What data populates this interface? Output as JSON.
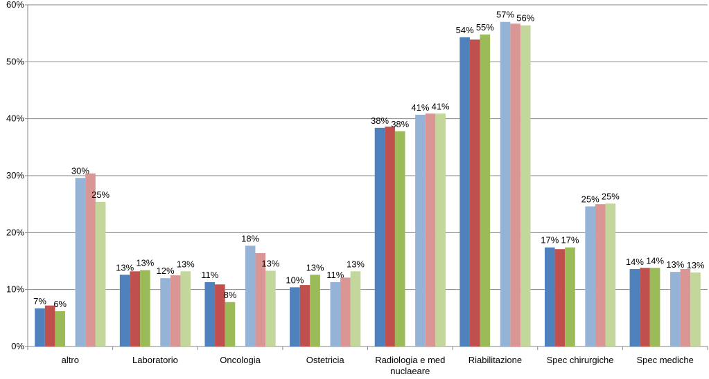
{
  "chart_data": {
    "type": "bar",
    "categories": [
      "altro",
      "Laboratorio",
      "Oncologia",
      "Ostetricia",
      "Radiologia e med nuclaeare",
      "Riabilitazione",
      "Spec chirurgiche",
      "Spec mediche"
    ],
    "series": [
      {
        "color": "#4f81bd",
        "values": [
          6.7,
          12.6,
          11.3,
          10.4,
          38.4,
          54.3,
          17.4,
          13.6
        ],
        "value_labels": [
          "7%",
          "13%",
          "11%",
          "10%",
          "38%",
          "54%",
          "17%",
          "14%"
        ]
      },
      {
        "color": "#c0504d",
        "values": [
          7.2,
          13.2,
          10.9,
          10.8,
          38.6,
          53.9,
          17.1,
          13.8
        ]
      },
      {
        "color": "#9bbb59",
        "values": [
          6.2,
          13.4,
          7.8,
          12.6,
          37.8,
          54.8,
          17.4,
          13.8
        ],
        "value_labels": [
          "6%",
          "13%",
          "8%",
          "13%",
          "38%",
          "55%",
          "17%",
          "14%"
        ]
      },
      {
        "color": "#95b3d7",
        "values": [
          29.6,
          12.0,
          17.7,
          11.3,
          40.7,
          57.0,
          24.6,
          13.1
        ],
        "value_labels": [
          "30%",
          "12%",
          "18%",
          "11%",
          "41%",
          "57%",
          "25%",
          "13%"
        ]
      },
      {
        "color": "#d99694",
        "values": [
          30.4,
          12.5,
          16.4,
          12.1,
          40.9,
          56.7,
          25.0,
          13.6
        ]
      },
      {
        "color": "#c3d69b",
        "values": [
          25.4,
          13.2,
          13.3,
          13.2,
          40.9,
          56.4,
          25.1,
          13.0
        ],
        "value_labels": [
          "25%",
          "13%",
          "13%",
          "13%",
          "41%",
          "56%",
          "25%",
          "13%"
        ]
      }
    ],
    "ylim": [
      0,
      60
    ],
    "yticks": [
      {
        "value": 0,
        "label": "0%"
      },
      {
        "value": 10,
        "label": "10%"
      },
      {
        "value": 20,
        "label": "20%"
      },
      {
        "value": 30,
        "label": "30%"
      },
      {
        "value": 40,
        "label": "40%"
      },
      {
        "value": 50,
        "label": "50%"
      },
      {
        "value": 60,
        "label": "60%"
      }
    ],
    "grid": true
  }
}
